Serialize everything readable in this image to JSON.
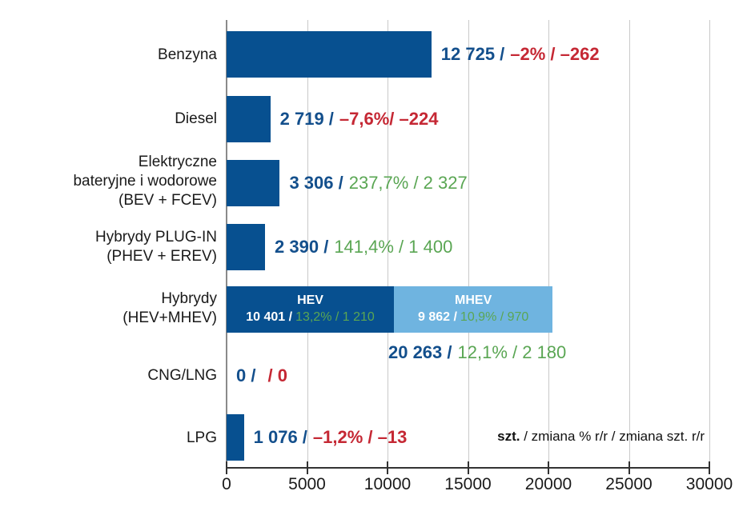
{
  "chart_data": {
    "type": "bar",
    "orientation": "horizontal",
    "title": "",
    "xlabel": "",
    "ylabel": "",
    "xlim": [
      0,
      30000
    ],
    "x_tick_values": [
      0,
      5000,
      10000,
      15000,
      20000,
      25000,
      30000
    ],
    "x_tick_labels": [
      "0",
      "5000",
      "10000",
      "15000",
      "20000",
      "25000",
      "30000"
    ],
    "grid": true,
    "legend": {
      "unit_bold": "szt.",
      "rest": " / zmiana % r/r / zmiana szt. r/r"
    },
    "colors": {
      "bar_dark_blue": "#075090",
      "bar_light_blue": "#6fb4e0",
      "value_blue": "#134f8c",
      "negative_red": "#c52834",
      "positive_green": "#5aa653"
    },
    "rows": [
      {
        "category": "Benzyna",
        "value": 12725,
        "value_label": "12 725 /",
        "change_label": "–2% / –262",
        "change_direction": "negative"
      },
      {
        "category": "Diesel",
        "value": 2719,
        "value_label": "2 719 /",
        "change_label": "–7,6%/ –224",
        "change_direction": "negative"
      },
      {
        "category": "Elektryczne\nbateryjne i wodorowe\n(BEV + FCEV)",
        "value": 3306,
        "value_label": "3 306 /",
        "change_label": "237,7% / 2 327",
        "change_direction": "positive"
      },
      {
        "category": "Hybrydy PLUG-IN\n(PHEV + EREV)",
        "value": 2390,
        "value_label": "2 390 /",
        "change_label": "141,4% / 1 400",
        "change_direction": "positive"
      },
      {
        "category": "Hybrydy\n(HEV+MHEV)",
        "value": 20263,
        "stacked": true,
        "segments": [
          {
            "name": "HEV",
            "value": 10401,
            "value_label": "10 401 /",
            "change_label": "13,2% / 1 210"
          },
          {
            "name": "MHEV",
            "value": 9862,
            "value_label": "9 862 /",
            "change_label": "10,9% / 970"
          }
        ],
        "total": {
          "value_label": "20 263 /",
          "change_label": "12,1% / 2 180",
          "change_direction": "positive"
        }
      },
      {
        "category": "CNG/LNG",
        "value": 0,
        "value_label": "0 /",
        "change_label": "/ 0",
        "change_direction": "negative"
      },
      {
        "category": "LPG",
        "value": 1076,
        "value_label": "1 076 /",
        "change_label": "–1,2% / –13",
        "change_direction": "negative"
      }
    ]
  }
}
